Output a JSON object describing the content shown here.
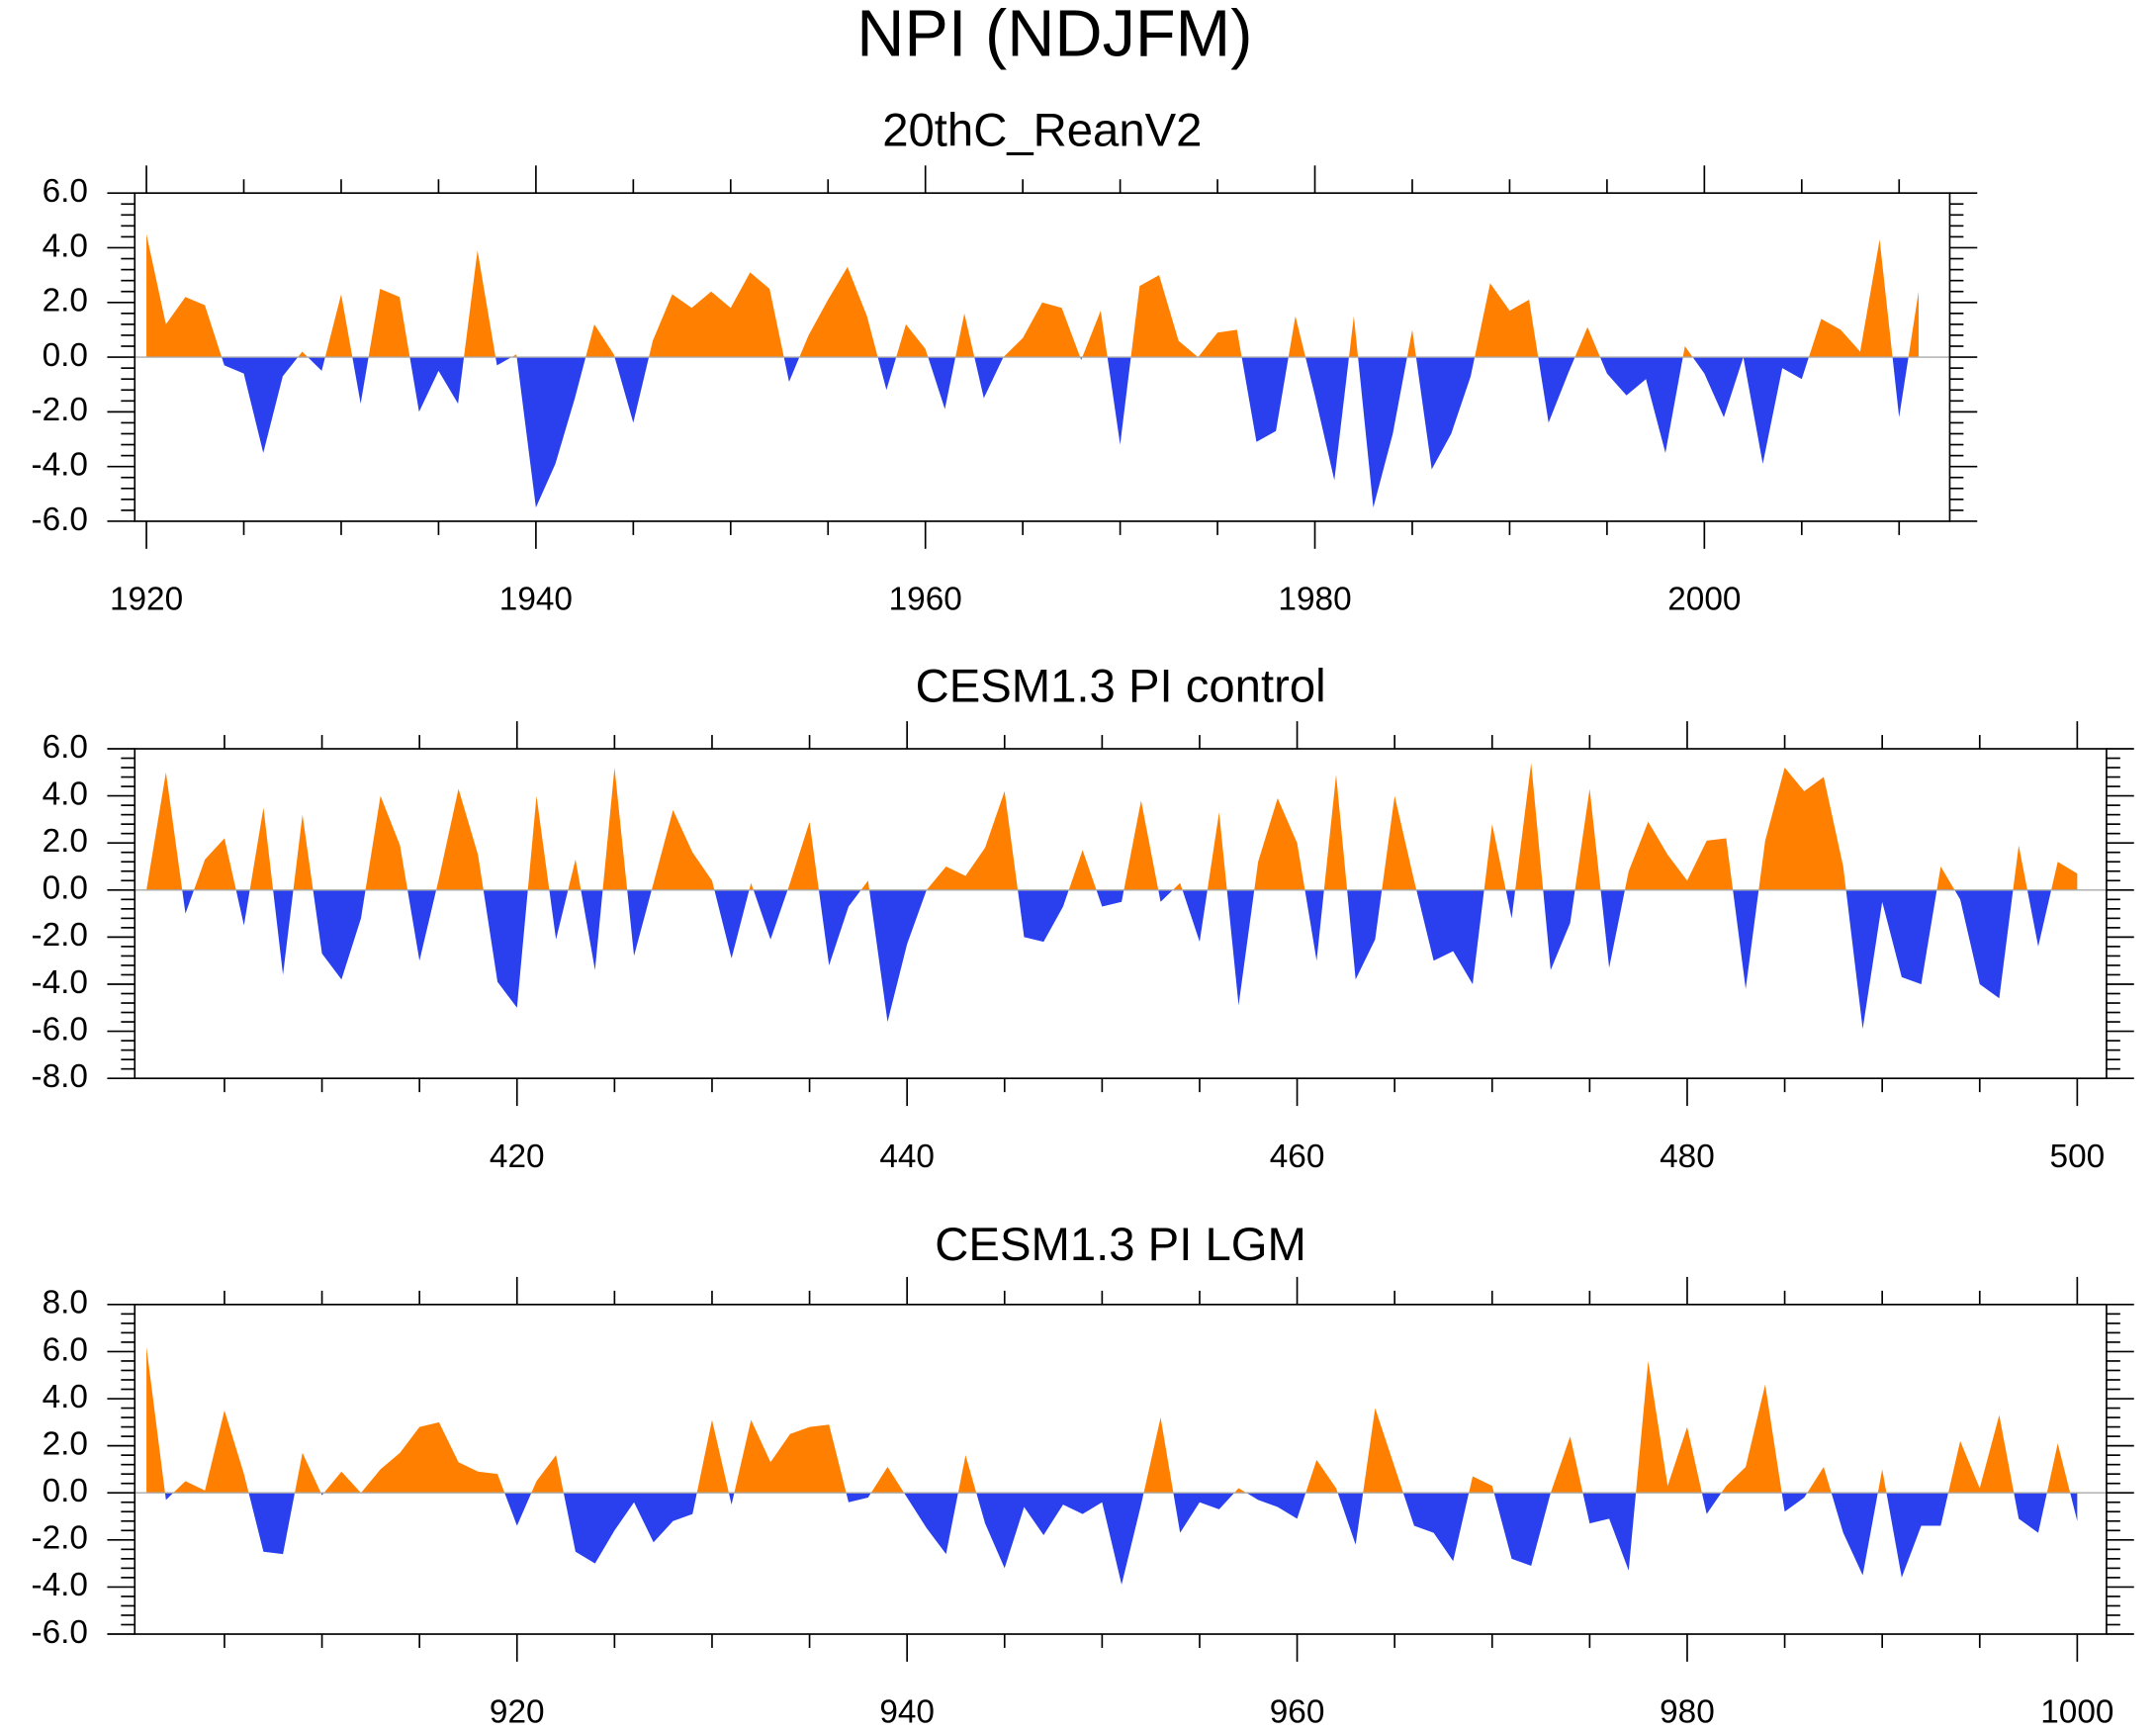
{
  "title": "NPI (NDJFM)",
  "chart_data": [
    {
      "type": "area",
      "title": "20thC_ReanV2",
      "colors": {
        "above": "#ff8000",
        "below": "#2a40ee"
      },
      "x": [
        1920,
        1921,
        1922,
        1923,
        1924,
        1925,
        1926,
        1927,
        1928,
        1929,
        1930,
        1931,
        1932,
        1933,
        1934,
        1935,
        1936,
        1937,
        1938,
        1939,
        1940,
        1941,
        1942,
        1943,
        1944,
        1945,
        1946,
        1947,
        1948,
        1949,
        1950,
        1951,
        1952,
        1953,
        1954,
        1955,
        1956,
        1957,
        1958,
        1959,
        1960,
        1961,
        1962,
        1963,
        1964,
        1965,
        1966,
        1967,
        1968,
        1969,
        1970,
        1971,
        1972,
        1973,
        1974,
        1975,
        1976,
        1977,
        1978,
        1979,
        1980,
        1981,
        1982,
        1983,
        1984,
        1985,
        1986,
        1987,
        1988,
        1989,
        1990,
        1991,
        1992,
        1993,
        1994,
        1995,
        1996,
        1997,
        1998,
        1999,
        2000,
        2001,
        2002,
        2003,
        2004,
        2005,
        2006,
        2007,
        2008,
        2009,
        2010,
        2011
      ],
      "values": [
        4.5,
        1.2,
        2.2,
        1.9,
        -0.3,
        -0.6,
        -3.5,
        -0.7,
        0.2,
        -0.5,
        2.3,
        -1.7,
        2.5,
        2.2,
        -2.0,
        -0.5,
        -1.7,
        3.9,
        -0.3,
        0.1,
        -5.5,
        -3.9,
        -1.5,
        1.2,
        0.1,
        -2.4,
        0.6,
        2.3,
        1.8,
        2.4,
        1.8,
        3.1,
        2.5,
        -0.9,
        0.8,
        2.1,
        3.3,
        1.5,
        -1.2,
        1.2,
        0.3,
        -1.9,
        1.6,
        -1.5,
        0.0,
        0.7,
        2.0,
        1.8,
        -0.1,
        1.7,
        -3.2,
        2.6,
        3.0,
        0.6,
        0.0,
        0.9,
        1.0,
        -3.1,
        -2.7,
        1.5,
        -1.4,
        -4.5,
        1.5,
        -5.5,
        -2.8,
        1.0,
        -4.1,
        -2.8,
        -0.7,
        2.7,
        1.7,
        2.1,
        -2.4,
        -0.6,
        1.1,
        -0.6,
        -1.4,
        -0.8,
        -3.5,
        0.4,
        -0.6,
        -2.2,
        0.0,
        -3.9,
        -0.4,
        -0.8,
        1.4,
        1.0,
        0.2,
        4.3,
        -2.2,
        2.4
      ],
      "xlim": [
        1919.4,
        2012.6
      ],
      "xticks": [
        1920,
        1940,
        1960,
        1980,
        2000
      ],
      "ylim": [
        -6,
        6
      ],
      "yticks": [
        {
          "value": 6,
          "label": "6.0"
        },
        {
          "value": 4,
          "label": "4.0"
        },
        {
          "value": 2,
          "label": "2.0"
        },
        {
          "value": 0,
          "label": "0.0"
        },
        {
          "value": -2,
          "label": "-2.0"
        },
        {
          "value": -4,
          "label": "-4.0"
        },
        {
          "value": -6,
          "label": "-6.0"
        }
      ]
    },
    {
      "type": "area",
      "title": "CESM1.3 PI control",
      "colors": {
        "above": "#ff8000",
        "below": "#2a40ee"
      },
      "x": [
        401,
        402,
        403,
        404,
        405,
        406,
        407,
        408,
        409,
        410,
        411,
        412,
        413,
        414,
        415,
        416,
        417,
        418,
        419,
        420,
        421,
        422,
        423,
        424,
        425,
        426,
        427,
        428,
        429,
        430,
        431,
        432,
        433,
        434,
        435,
        436,
        437,
        438,
        439,
        440,
        441,
        442,
        443,
        444,
        445,
        446,
        447,
        448,
        449,
        450,
        451,
        452,
        453,
        454,
        455,
        456,
        457,
        458,
        459,
        460,
        461,
        462,
        463,
        464,
        465,
        466,
        467,
        468,
        469,
        470,
        471,
        472,
        473,
        474,
        475,
        476,
        477,
        478,
        479,
        480,
        481,
        482,
        483,
        484,
        485,
        486,
        487,
        488,
        489,
        490,
        491,
        492,
        493,
        494,
        495,
        496,
        497,
        498,
        499,
        500
      ],
      "values": [
        0.0,
        5.0,
        -1.0,
        1.3,
        2.2,
        -1.5,
        3.5,
        -3.6,
        3.2,
        -2.7,
        -3.8,
        -1.2,
        4.0,
        1.9,
        -3.0,
        0.5,
        4.3,
        1.5,
        -3.9,
        -5.0,
        4.0,
        -2.1,
        1.3,
        -3.4,
        5.2,
        -2.8,
        0.3,
        3.4,
        1.6,
        0.4,
        -2.9,
        0.3,
        -2.1,
        0.3,
        2.9,
        -3.2,
        -0.7,
        0.4,
        -5.6,
        -2.3,
        0.0,
        1.0,
        0.6,
        1.8,
        4.2,
        -2.0,
        -2.2,
        -0.7,
        1.7,
        -0.7,
        -0.5,
        3.8,
        -0.5,
        0.3,
        -2.2,
        3.3,
        -4.9,
        1.2,
        3.9,
        2.0,
        -3.0,
        4.9,
        -3.8,
        -2.1,
        4.0,
        0.4,
        -3.0,
        -2.6,
        -4.0,
        2.8,
        -1.2,
        5.4,
        -3.4,
        -1.4,
        4.3,
        -3.3,
        0.8,
        2.9,
        1.5,
        0.4,
        2.1,
        2.2,
        -4.2,
        2.1,
        5.2,
        4.2,
        4.8,
        1.0,
        -5.9,
        -0.5,
        -3.7,
        -4.0,
        1.0,
        -0.4,
        -4.0,
        -4.6,
        1.9,
        -2.4,
        1.2,
        0.7
      ],
      "xlim": [
        400.4,
        501.5
      ],
      "xticks": [
        420,
        440,
        460,
        480,
        500
      ],
      "ylim": [
        -8,
        6
      ],
      "yticks": [
        {
          "value": 6,
          "label": "6.0"
        },
        {
          "value": 4,
          "label": "4.0"
        },
        {
          "value": 2,
          "label": "2.0"
        },
        {
          "value": 0,
          "label": "0.0"
        },
        {
          "value": -2,
          "label": "-2.0"
        },
        {
          "value": -4,
          "label": "-4.0"
        },
        {
          "value": -6,
          "label": "-6.0"
        },
        {
          "value": -8,
          "label": "-8.0"
        }
      ]
    },
    {
      "type": "area",
      "title": "CESM1.3 PI LGM",
      "colors": {
        "above": "#ff8000",
        "below": "#2a40ee"
      },
      "x": [
        901,
        902,
        903,
        904,
        905,
        906,
        907,
        908,
        909,
        910,
        911,
        912,
        913,
        914,
        915,
        916,
        917,
        918,
        919,
        920,
        921,
        922,
        923,
        924,
        925,
        926,
        927,
        928,
        929,
        930,
        931,
        932,
        933,
        934,
        935,
        936,
        937,
        938,
        939,
        940,
        941,
        942,
        943,
        944,
        945,
        946,
        947,
        948,
        949,
        950,
        951,
        952,
        953,
        954,
        955,
        956,
        957,
        958,
        959,
        960,
        961,
        962,
        963,
        964,
        965,
        966,
        967,
        968,
        969,
        970,
        971,
        972,
        973,
        974,
        975,
        976,
        977,
        978,
        979,
        980,
        981,
        982,
        983,
        984,
        985,
        986,
        987,
        988,
        989,
        990,
        991,
        992,
        993,
        994,
        995,
        996,
        997,
        998,
        999,
        1000
      ],
      "values": [
        6.2,
        -0.3,
        0.5,
        0.1,
        3.5,
        0.8,
        -2.5,
        -2.6,
        1.7,
        -0.1,
        0.9,
        0.0,
        1.0,
        1.7,
        2.8,
        3.0,
        1.3,
        0.9,
        0.8,
        -1.4,
        0.5,
        1.6,
        -2.5,
        -3.0,
        -1.6,
        -0.4,
        -2.1,
        -1.2,
        -0.9,
        3.1,
        -0.5,
        3.1,
        1.3,
        2.5,
        2.8,
        2.9,
        -0.4,
        -0.2,
        1.1,
        -0.2,
        -1.5,
        -2.6,
        1.6,
        -1.3,
        -3.2,
        -0.6,
        -1.8,
        -0.5,
        -0.9,
        -0.4,
        -3.9,
        -0.5,
        3.2,
        -1.7,
        -0.4,
        -0.7,
        0.2,
        -0.3,
        -0.6,
        -1.1,
        1.4,
        0.2,
        -2.2,
        3.6,
        1.1,
        -1.4,
        -1.7,
        -2.9,
        0.7,
        0.3,
        -2.8,
        -3.1,
        0.0,
        2.4,
        -1.3,
        -1.1,
        -3.3,
        5.6,
        0.3,
        2.8,
        -0.9,
        0.3,
        1.1,
        4.6,
        -0.8,
        -0.2,
        1.1,
        -1.7,
        -3.5,
        1.0,
        -3.6,
        -1.4,
        -1.4,
        2.2,
        0.2,
        3.3,
        -1.1,
        -1.7,
        2.1,
        -1.2
      ],
      "xlim": [
        900.4,
        1001.5
      ],
      "xticks": [
        920,
        940,
        960,
        980,
        1000
      ],
      "ylim": [
        -6,
        8
      ],
      "yticks": [
        {
          "value": 8,
          "label": "8.0"
        },
        {
          "value": 6,
          "label": "6.0"
        },
        {
          "value": 4,
          "label": "4.0"
        },
        {
          "value": 2,
          "label": "2.0"
        },
        {
          "value": 0,
          "label": "0.0"
        },
        {
          "value": -2,
          "label": "-2.0"
        },
        {
          "value": -4,
          "label": "-4.0"
        },
        {
          "value": -6,
          "label": "-6.0"
        }
      ]
    }
  ]
}
